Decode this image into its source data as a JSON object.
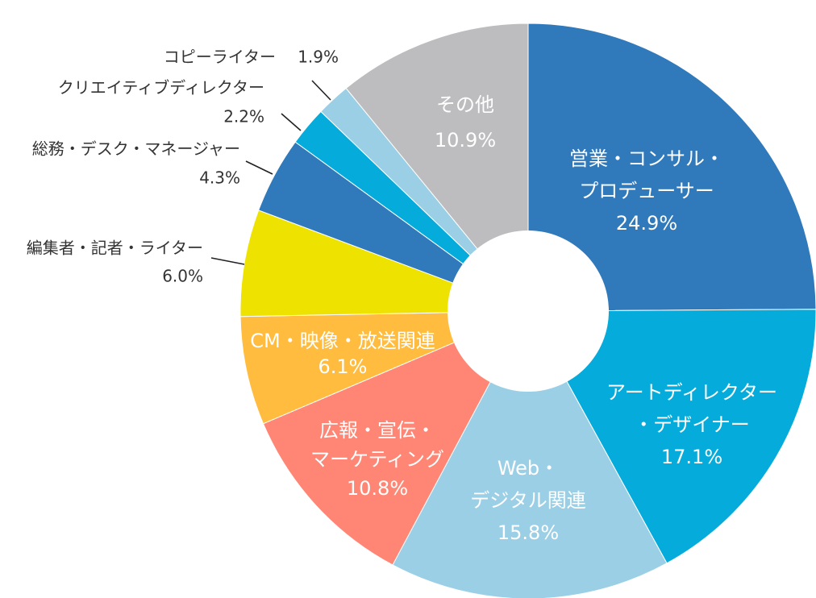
{
  "chart_data": {
    "type": "pie",
    "variant": "donut",
    "legend": "none",
    "slices": [
      {
        "label": [
          "営業・コンサル・",
          "プロデューサー"
        ],
        "value": 24.9,
        "value_label": "24.9%",
        "color": "#3079BA",
        "label_placement": "inside"
      },
      {
        "label": [
          "アートディレクター",
          "・デザイナー"
        ],
        "value": 17.1,
        "value_label": "17.1%",
        "color": "#05ACDB",
        "label_placement": "inside"
      },
      {
        "label": [
          "Web・",
          "デジタル関連"
        ],
        "value": 15.8,
        "value_label": "15.8%",
        "color": "#9BCFE6",
        "label_placement": "inside"
      },
      {
        "label": [
          "広報・宣伝・",
          "マーケティング"
        ],
        "value": 10.8,
        "value_label": "10.8%",
        "color": "#FF8674",
        "label_placement": "inside"
      },
      {
        "label": [
          "CM・映像・放送関連"
        ],
        "value": 6.1,
        "value_label": "6.1%",
        "color": "#FFBC3E",
        "label_placement": "inside"
      },
      {
        "label": [
          "編集者・記者・ライター"
        ],
        "value": 6.0,
        "value_label": "6.0%",
        "color": "#EEE200",
        "label_placement": "outside"
      },
      {
        "label": [
          "総務・デスク・マネージャー"
        ],
        "value": 4.3,
        "value_label": "4.3%",
        "color": "#3079BA",
        "label_placement": "outside"
      },
      {
        "label": [
          "クリエイティブディレクター"
        ],
        "value": 2.2,
        "value_label": "2.2%",
        "color": "#05ACDB",
        "label_placement": "outside"
      },
      {
        "label": [
          "コピーライター"
        ],
        "value": 1.9,
        "value_label": "1.9%",
        "color": "#9BCFE6",
        "label_placement": "outside"
      },
      {
        "label": [
          "その他"
        ],
        "value": 10.9,
        "value_label": "10.9%",
        "color": "#BDBDBF",
        "label_placement": "inside"
      }
    ]
  }
}
